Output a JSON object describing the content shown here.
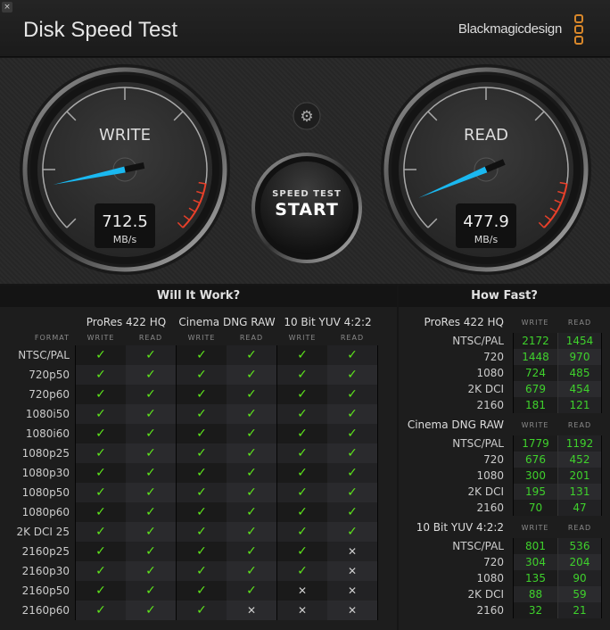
{
  "app": {
    "title": "Disk Speed Test",
    "brand": "Blackmagicdesign",
    "close_label": "×"
  },
  "gauges": {
    "write": {
      "label": "WRITE",
      "value": "712.5",
      "unit": "MB/s"
    },
    "read": {
      "label": "READ",
      "value": "477.9",
      "unit": "MB/s"
    },
    "needle_color": "#1ab8f0",
    "redline_color": "#e8402a"
  },
  "start_button": {
    "line1": "SPEED TEST",
    "line2": "START"
  },
  "settings_icon": "gear-icon",
  "will_it_work": {
    "title": "Will It Work?",
    "format_label": "FORMAT",
    "groups": [
      "ProRes 422 HQ",
      "Cinema DNG RAW",
      "10 Bit YUV 4:2:2"
    ],
    "sub": [
      "WRITE",
      "READ"
    ],
    "rows": [
      {
        "format": "NTSC/PAL",
        "results": [
          1,
          1,
          1,
          1,
          1,
          1
        ]
      },
      {
        "format": "720p50",
        "results": [
          1,
          1,
          1,
          1,
          1,
          1
        ]
      },
      {
        "format": "720p60",
        "results": [
          1,
          1,
          1,
          1,
          1,
          1
        ]
      },
      {
        "format": "1080i50",
        "results": [
          1,
          1,
          1,
          1,
          1,
          1
        ]
      },
      {
        "format": "1080i60",
        "results": [
          1,
          1,
          1,
          1,
          1,
          1
        ]
      },
      {
        "format": "1080p25",
        "results": [
          1,
          1,
          1,
          1,
          1,
          1
        ]
      },
      {
        "format": "1080p30",
        "results": [
          1,
          1,
          1,
          1,
          1,
          1
        ]
      },
      {
        "format": "1080p50",
        "results": [
          1,
          1,
          1,
          1,
          1,
          1
        ]
      },
      {
        "format": "1080p60",
        "results": [
          1,
          1,
          1,
          1,
          1,
          1
        ]
      },
      {
        "format": "2K DCI 25",
        "results": [
          1,
          1,
          1,
          1,
          1,
          1
        ]
      },
      {
        "format": "2160p25",
        "results": [
          1,
          1,
          1,
          1,
          1,
          0
        ]
      },
      {
        "format": "2160p30",
        "results": [
          1,
          1,
          1,
          1,
          1,
          0
        ]
      },
      {
        "format": "2160p50",
        "results": [
          1,
          1,
          1,
          1,
          0,
          0
        ]
      },
      {
        "format": "2160p60",
        "results": [
          1,
          1,
          1,
          0,
          0,
          0
        ]
      }
    ],
    "check": "✓",
    "cross": "✕"
  },
  "how_fast": {
    "title": "How Fast?",
    "sub": [
      "WRITE",
      "READ"
    ],
    "groups": [
      {
        "name": "ProRes 422 HQ",
        "rows": [
          [
            "NTSC/PAL",
            "2172",
            "1454"
          ],
          [
            "720",
            "1448",
            "970"
          ],
          [
            "1080",
            "724",
            "485"
          ],
          [
            "2K DCI",
            "679",
            "454"
          ],
          [
            "2160",
            "181",
            "121"
          ]
        ]
      },
      {
        "name": "Cinema DNG RAW",
        "rows": [
          [
            "NTSC/PAL",
            "1779",
            "1192"
          ],
          [
            "720",
            "676",
            "452"
          ],
          [
            "1080",
            "300",
            "201"
          ],
          [
            "2K DCI",
            "195",
            "131"
          ],
          [
            "2160",
            "70",
            "47"
          ]
        ]
      },
      {
        "name": "10 Bit YUV 4:2:2",
        "rows": [
          [
            "NTSC/PAL",
            "801",
            "536"
          ],
          [
            "720",
            "304",
            "204"
          ],
          [
            "1080",
            "135",
            "90"
          ],
          [
            "2K DCI",
            "88",
            "59"
          ],
          [
            "2160",
            "32",
            "21"
          ]
        ]
      }
    ]
  }
}
